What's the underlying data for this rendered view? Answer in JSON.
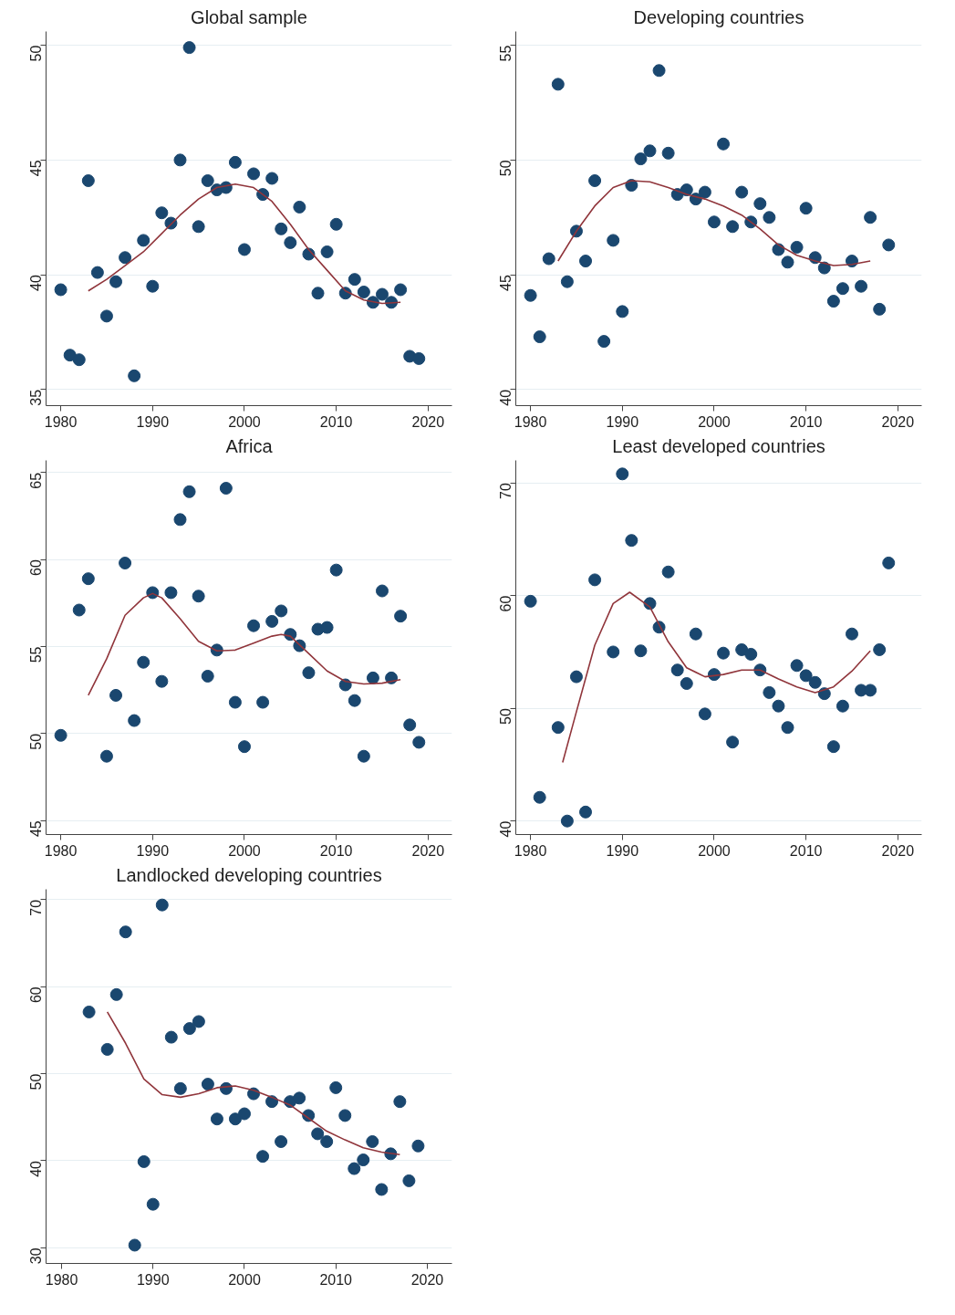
{
  "chart_data": [
    {
      "type": "scatter",
      "title": "Global sample",
      "xlim": [
        1978.4,
        2022.6
      ],
      "xticks": [
        1980,
        1990,
        2000,
        2010,
        2020
      ],
      "ylim": [
        34.3,
        50.6
      ],
      "yticks": [
        35,
        40,
        45,
        50
      ],
      "grid": "y",
      "series": [
        {
          "marker": "circle",
          "color": "#1a476f",
          "x": [
            1980,
            1981,
            1982,
            1983,
            1984,
            1985,
            1986,
            1987,
            1988,
            1989,
            1990,
            1991,
            1992,
            1993,
            1994,
            1995,
            1996,
            1997,
            1998,
            1999,
            2000,
            2001,
            2002,
            2003,
            2004,
            2005,
            2006,
            2007,
            2008,
            2009,
            2010,
            2011,
            2012,
            2013,
            2014,
            2015,
            2016,
            2017,
            2018,
            2019
          ],
          "values": [
            39.35,
            36.5,
            36.3,
            44.1,
            40.1,
            38.2,
            39.7,
            40.75,
            35.6,
            41.5,
            39.5,
            42.7,
            42.25,
            45.0,
            49.9,
            42.1,
            44.1,
            43.7,
            43.8,
            44.9,
            41.1,
            44.4,
            43.5,
            44.2,
            42.0,
            41.4,
            42.95,
            40.9,
            39.2,
            41.0,
            42.2,
            39.2,
            39.8,
            39.25,
            38.8,
            39.15,
            38.8,
            39.35,
            36.45,
            36.35
          ]
        },
        {
          "type": "line",
          "color": "#90353b",
          "x": [
            1983,
            1985,
            1987,
            1989,
            1991,
            1993,
            1995,
            1997,
            1999,
            2001,
            2003,
            2005,
            2007,
            2009,
            2011,
            2013,
            2015,
            2017
          ],
          "values": [
            39.3,
            39.8,
            40.4,
            41.0,
            41.8,
            42.6,
            43.3,
            43.8,
            43.95,
            43.8,
            43.2,
            42.2,
            41.1,
            40.2,
            39.3,
            38.9,
            38.75,
            38.8
          ]
        }
      ]
    },
    {
      "type": "scatter",
      "title": "Developing countries",
      "xlim": [
        1978.4,
        2022.6
      ],
      "xticks": [
        1980,
        1990,
        2000,
        2010,
        2020
      ],
      "ylim": [
        39.3,
        55.6
      ],
      "yticks": [
        40,
        45,
        50,
        55
      ],
      "grid": "y",
      "series": [
        {
          "marker": "circle",
          "color": "#1a476f",
          "x": [
            1980,
            1981,
            1982,
            1983,
            1984,
            1985,
            1986,
            1987,
            1988,
            1989,
            1990,
            1991,
            1992,
            1993,
            1994,
            1995,
            1996,
            1997,
            1998,
            1999,
            2000,
            2001,
            2002,
            2003,
            2004,
            2005,
            2006,
            2007,
            2008,
            2009,
            2010,
            2011,
            2012,
            2013,
            2014,
            2015,
            2016,
            2017,
            2018,
            2019
          ],
          "values": [
            44.1,
            42.3,
            45.7,
            53.3,
            44.7,
            46.9,
            45.6,
            49.1,
            42.1,
            46.5,
            43.4,
            48.9,
            50.05,
            50.4,
            53.9,
            50.3,
            48.5,
            48.7,
            48.3,
            48.6,
            47.3,
            50.7,
            47.1,
            48.6,
            47.3,
            48.1,
            47.5,
            46.1,
            45.55,
            46.2,
            47.9,
            45.75,
            45.3,
            43.85,
            44.4,
            45.6,
            44.5,
            47.5,
            43.5,
            46.3
          ]
        },
        {
          "type": "line",
          "color": "#90353b",
          "x": [
            1983,
            1985,
            1987,
            1989,
            1991,
            1993,
            1995,
            1997,
            1999,
            2001,
            2003,
            2005,
            2007,
            2009,
            2011,
            2013,
            2015,
            2017
          ],
          "values": [
            45.6,
            46.9,
            48.0,
            48.8,
            49.1,
            49.05,
            48.8,
            48.5,
            48.3,
            48.0,
            47.6,
            47.0,
            46.3,
            45.85,
            45.6,
            45.4,
            45.45,
            45.6
          ]
        }
      ]
    },
    {
      "type": "scatter",
      "title": "Africa",
      "xlim": [
        1978.4,
        2022.6
      ],
      "xticks": [
        1980,
        1990,
        2000,
        2010,
        2020
      ],
      "ylim": [
        44.2,
        65.7
      ],
      "yticks": [
        45,
        50,
        55,
        60,
        65
      ],
      "grid": "y",
      "series": [
        {
          "marker": "circle",
          "color": "#1a476f",
          "x": [
            1980,
            1982,
            1983,
            1985,
            1986,
            1987,
            1988,
            1989,
            1990,
            1991,
            1992,
            1993,
            1994,
            1995,
            1996,
            1997,
            1998,
            1999,
            2000,
            2001,
            2002,
            2003,
            2004,
            2005,
            2006,
            2007,
            2008,
            2009,
            2010,
            2011,
            2012,
            2013,
            2014,
            2015,
            2016,
            2017,
            2018,
            2019
          ],
          "values": [
            49.9,
            57.1,
            58.9,
            48.7,
            52.2,
            59.8,
            50.75,
            54.1,
            58.1,
            53.0,
            58.1,
            62.3,
            63.9,
            57.9,
            53.3,
            54.8,
            64.1,
            51.8,
            49.25,
            56.2,
            51.8,
            56.45,
            57.05,
            55.7,
            55.05,
            53.5,
            56.0,
            56.1,
            59.4,
            52.8,
            51.9,
            48.7,
            53.2,
            58.2,
            53.2,
            56.75,
            50.5,
            49.5
          ]
        },
        {
          "type": "line",
          "color": "#90353b",
          "x": [
            1983,
            1985,
            1987,
            1989,
            1990,
            1991,
            1993,
            1995,
            1997,
            1999,
            2001,
            2003,
            2004,
            2005,
            2007,
            2009,
            2011,
            2013,
            2015,
            2017
          ],
          "values": [
            52.2,
            54.3,
            56.8,
            57.8,
            58.05,
            57.8,
            56.6,
            55.3,
            54.75,
            54.8,
            55.2,
            55.6,
            55.7,
            55.6,
            54.6,
            53.6,
            53.0,
            52.85,
            52.9,
            53.1
          ]
        }
      ]
    },
    {
      "type": "scatter",
      "title": "Least developed countries",
      "xlim": [
        1978.4,
        2022.6
      ],
      "xticks": [
        1980,
        1990,
        2000,
        2010,
        2020
      ],
      "ylim": [
        38.8,
        72.0
      ],
      "yticks": [
        40,
        50,
        60,
        70
      ],
      "grid": "y",
      "series": [
        {
          "marker": "circle",
          "color": "#1a476f",
          "x": [
            1980,
            1981,
            1983,
            1984,
            1985,
            1986,
            1987,
            1989,
            1990,
            1991,
            1992,
            1993,
            1994,
            1995,
            1996,
            1997,
            1998,
            1999,
            2000,
            2001,
            2002,
            2003,
            2004,
            2005,
            2006,
            2007,
            2008,
            2009,
            2010,
            2011,
            2012,
            2013,
            2014,
            2015,
            2016,
            2017,
            2018,
            2019
          ],
          "values": [
            59.5,
            42.1,
            48.3,
            40.0,
            52.8,
            40.8,
            61.4,
            55.0,
            70.8,
            64.9,
            55.1,
            59.3,
            57.2,
            62.1,
            53.4,
            52.2,
            56.6,
            49.5,
            53.0,
            54.9,
            47.0,
            55.2,
            54.8,
            53.4,
            51.4,
            50.2,
            48.3,
            53.8,
            52.9,
            52.3,
            51.3,
            46.6,
            50.2,
            56.6,
            51.6,
            51.6,
            55.2,
            62.9
          ]
        },
        {
          "type": "line",
          "color": "#90353b",
          "x": [
            1983.5,
            1985,
            1987,
            1989,
            1990.8,
            1993,
            1995,
            1997,
            1999,
            2001,
            2003,
            2005,
            2007,
            2009,
            2011,
            2013,
            2015,
            2017
          ],
          "values": [
            45.2,
            49.7,
            55.6,
            59.3,
            60.3,
            59.0,
            55.9,
            53.6,
            52.8,
            53.0,
            53.4,
            53.4,
            52.6,
            51.9,
            51.4,
            51.9,
            53.3,
            55.1
          ]
        }
      ]
    },
    {
      "type": "scatter",
      "title": "Landlocked developing countries",
      "xlim": [
        1978.3,
        2022.7
      ],
      "xticks": [
        1980,
        1990,
        2000,
        2010,
        2020
      ],
      "ylim": [
        28.2,
        71.2
      ],
      "yticks": [
        30,
        40,
        50,
        60,
        70
      ],
      "grid": "y",
      "series": [
        {
          "marker": "circle",
          "color": "#1a476f",
          "x": [
            1983,
            1985,
            1986,
            1987,
            1988,
            1989,
            1990,
            1991,
            1992,
            1993,
            1994,
            1995,
            1996,
            1997,
            1998,
            1999,
            2000,
            2001,
            2002,
            2003,
            2004,
            2005,
            2006,
            2007,
            2008,
            2009,
            2010,
            2011,
            2012,
            2013,
            2014,
            2015,
            2016,
            2017,
            2018,
            2019
          ],
          "values": [
            57.1,
            52.8,
            59.1,
            66.3,
            30.3,
            39.9,
            35.0,
            69.4,
            54.2,
            48.3,
            55.2,
            56.0,
            48.8,
            44.8,
            48.3,
            44.8,
            45.4,
            47.7,
            40.5,
            46.8,
            42.2,
            46.8,
            47.2,
            45.2,
            43.1,
            42.2,
            48.4,
            45.2,
            39.1,
            40.1,
            42.2,
            36.7,
            40.8,
            46.8,
            37.7,
            41.7
          ]
        },
        {
          "type": "line",
          "color": "#90353b",
          "x": [
            1985,
            1987,
            1989,
            1991,
            1993,
            1995,
            1997,
            1999,
            2001,
            2003,
            2005,
            2007,
            2009,
            2011,
            2013,
            2015,
            2017
          ],
          "values": [
            57.1,
            53.5,
            49.4,
            47.6,
            47.3,
            47.7,
            48.4,
            48.6,
            48.1,
            47.3,
            46.4,
            44.9,
            43.4,
            42.4,
            41.5,
            41.0,
            40.7
          ]
        }
      ]
    }
  ]
}
